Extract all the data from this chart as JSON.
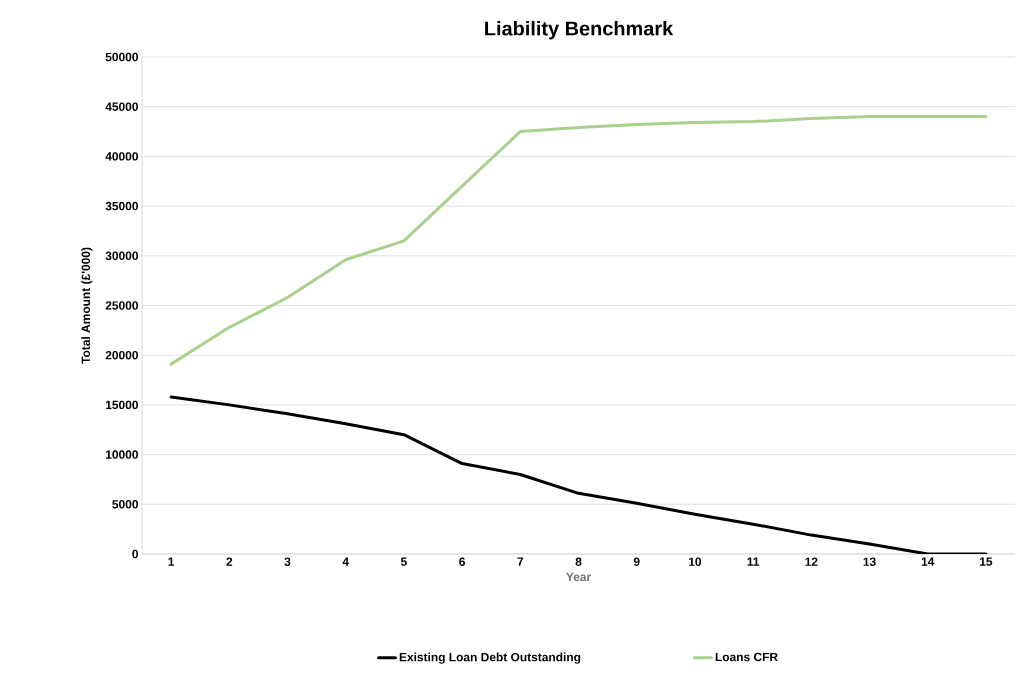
{
  "chart_data": {
    "type": "line",
    "title": "Liability Benchmark",
    "xlabel": "Year",
    "ylabel": "Total Amount (£'000)",
    "categories": [
      "1",
      "2",
      "3",
      "4",
      "5",
      "6",
      "7",
      "8",
      "9",
      "10",
      "11",
      "12",
      "13",
      "14",
      "15"
    ],
    "series": [
      {
        "name": "Existing Loan Debt Outstanding",
        "color": "#000000",
        "values": [
          15800,
          15000,
          14100,
          13100,
          12000,
          9100,
          8000,
          6100,
          5100,
          4000,
          3000,
          1900,
          1000,
          0,
          0
        ]
      },
      {
        "name": "Loans CFR",
        "color": "#a9d18e",
        "values": [
          19100,
          22800,
          25800,
          29600,
          31500,
          37000,
          42500,
          42900,
          43200,
          43400,
          43500,
          43800,
          44000,
          44000,
          44000
        ]
      }
    ],
    "ylim": [
      0,
      50000
    ],
    "yticks": [
      0,
      5000,
      10000,
      15000,
      20000,
      25000,
      30000,
      35000,
      40000,
      45000,
      50000
    ],
    "grid": "y",
    "legend": "bottom",
    "marker": "none",
    "line_style": "solid"
  }
}
